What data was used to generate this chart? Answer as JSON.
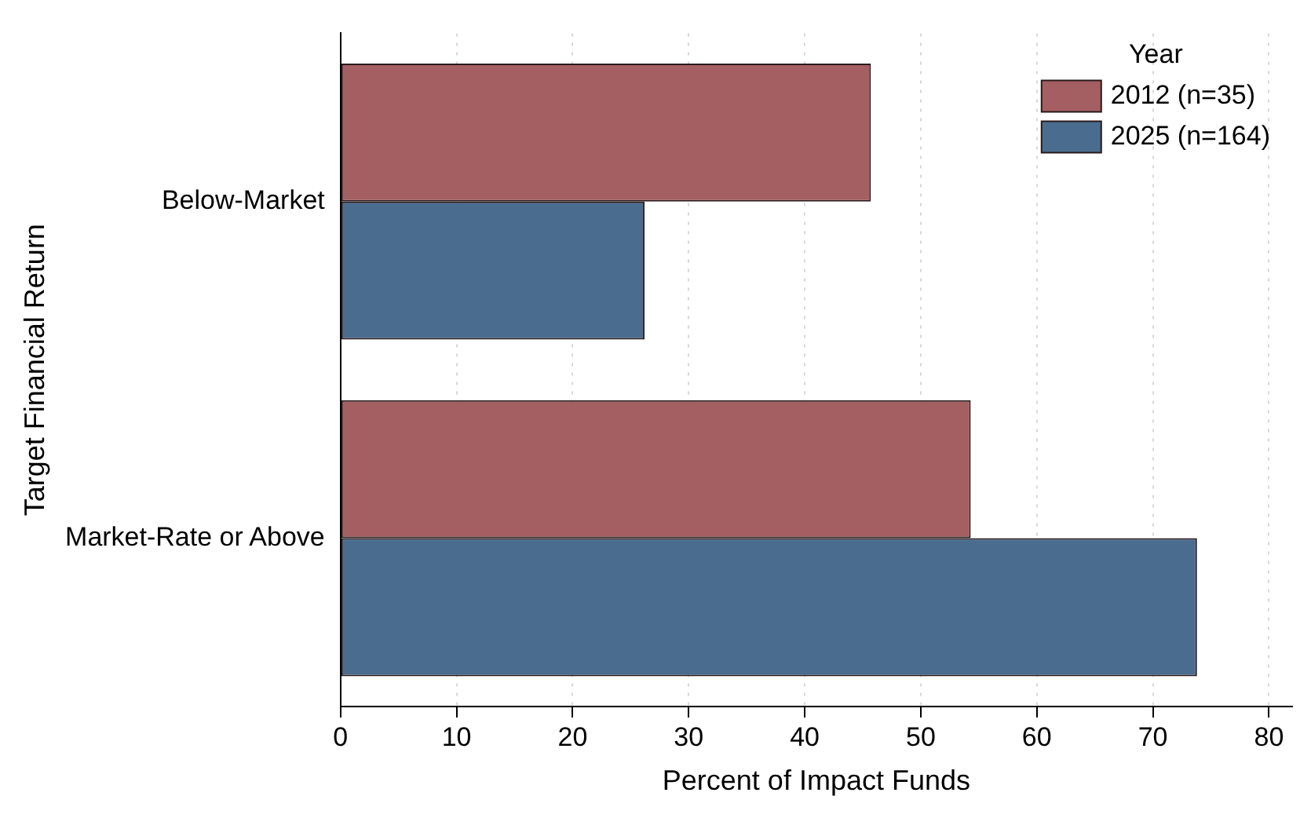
{
  "chart_data": {
    "type": "bar",
    "orientation": "horizontal",
    "xlabel": "Percent of Impact Funds",
    "ylabel": "Target Financial Return",
    "legend_title": "Year",
    "legend": "top right",
    "grid": "x",
    "categories": [
      "Below-Market",
      "Market-Rate or Above"
    ],
    "series": [
      {
        "name": "2012 (n=35)",
        "color": "#a45f63",
        "values": [
          45.7,
          54.3
        ]
      },
      {
        "name": "2025 (n=164)",
        "color": "#4a6d8f",
        "values": [
          26.2,
          73.8
        ]
      }
    ],
    "xlim": [
      0,
      82
    ],
    "xticks": [
      0,
      10,
      20,
      30,
      40,
      50,
      60,
      70,
      80
    ]
  }
}
